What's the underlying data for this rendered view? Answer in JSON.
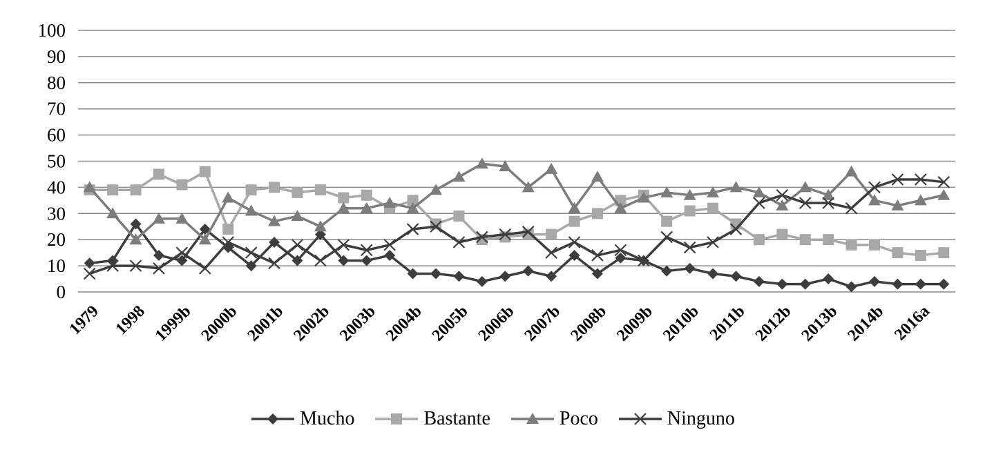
{
  "chart_data": {
    "type": "line",
    "title": "",
    "xlabel": "",
    "ylabel": "",
    "ylim": [
      0,
      100
    ],
    "yticks": [
      "0",
      "10",
      "20",
      "30",
      "40",
      "50",
      "60",
      "70",
      "80",
      "90",
      "100"
    ],
    "grid": "horizontal",
    "legend_position": "bottom",
    "x_tick_labels": [
      "1979",
      "1998",
      "1999b",
      "2000b",
      "2001b",
      "2002b",
      "2003b",
      "2004b",
      "2005b",
      "2006b",
      "2007b",
      "2008b",
      "2009b",
      "2010b",
      "2011b",
      "2012b",
      "2013b",
      "2014b",
      "2016a"
    ],
    "series": [
      {
        "name": "Mucho",
        "color": "#3d3d3d",
        "marker": "diamond",
        "values": [
          11,
          12,
          26,
          14,
          12,
          24,
          17,
          10,
          19,
          12,
          22,
          12,
          12,
          14,
          7,
          7,
          6,
          4,
          6,
          8,
          6,
          14,
          7,
          13,
          12,
          8,
          9,
          7,
          6,
          4,
          3,
          3,
          5,
          2,
          4,
          3,
          3,
          3
        ]
      },
      {
        "name": "Bastante",
        "color": "#a8a8a8",
        "marker": "square",
        "values": [
          39,
          39,
          39,
          45,
          41,
          46,
          24,
          39,
          40,
          38,
          39,
          36,
          37,
          32,
          35,
          26,
          29,
          20,
          21,
          22,
          22,
          27,
          30,
          35,
          37,
          27,
          31,
          32,
          26,
          20,
          22,
          20,
          20,
          18,
          18,
          15,
          14,
          15
        ]
      },
      {
        "name": "Poco",
        "color": "#7c7c7c",
        "marker": "triangle",
        "values": [
          40,
          30,
          20,
          28,
          28,
          20,
          36,
          31,
          27,
          29,
          25,
          32,
          32,
          34,
          32,
          39,
          44,
          49,
          48,
          40,
          47,
          32,
          44,
          32,
          36,
          38,
          37,
          38,
          40,
          38,
          33,
          40,
          37,
          46,
          35,
          33,
          35,
          37
        ]
      },
      {
        "name": "Ninguno",
        "color": "#3d3d3d",
        "marker": "x",
        "values": [
          7,
          10,
          10,
          9,
          15,
          9,
          19,
          15,
          11,
          18,
          12,
          18,
          16,
          18,
          24,
          25,
          19,
          21,
          22,
          23,
          15,
          19,
          14,
          16,
          12,
          21,
          17,
          19,
          24,
          34,
          37,
          34,
          34,
          32,
          40,
          43,
          43,
          42
        ]
      }
    ]
  }
}
